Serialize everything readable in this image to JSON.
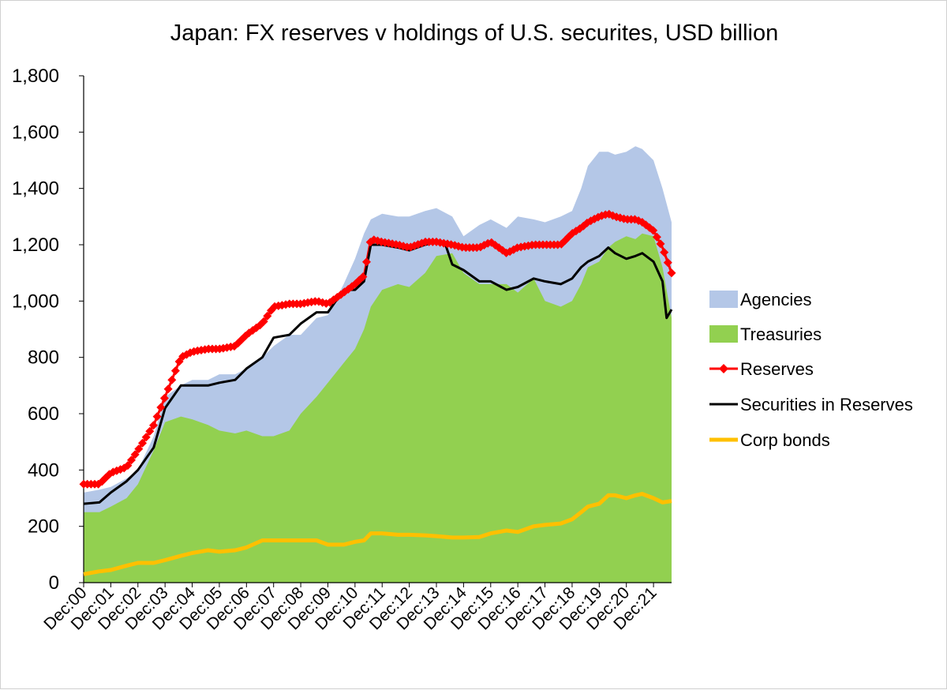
{
  "chart_data": {
    "type": "area",
    "title": "Japan: FX reserves v holdings of U.S. securites, USD billion",
    "xlabel": "",
    "ylabel": "",
    "ylim": [
      0,
      1800
    ],
    "yticks": [
      0,
      200,
      400,
      600,
      800,
      1000,
      1200,
      1400,
      1600,
      1800
    ],
    "ytick_labels": [
      "0",
      "200",
      "400",
      "600",
      "800",
      "1,000",
      "1,200",
      "1,400",
      "1,600",
      "1,800"
    ],
    "xtick_labels": [
      "Dec:00",
      "Dec:01",
      "Dec:02",
      "Dec:03",
      "Dec:04",
      "Dec:05",
      "Dec:06",
      "Dec:07",
      "Dec:08",
      "Dec:09",
      "Dec:10",
      "Dec:11",
      "Dec:12",
      "Dec:13",
      "Dec:14",
      "Dec:15",
      "Dec:16",
      "Dec:17",
      "Dec:18",
      "Dec:19",
      "Dec:20",
      "Dec:21"
    ],
    "x_range": [
      2000.917,
      2022.583
    ],
    "grid": false,
    "legend_position": "right",
    "colors": {
      "agencies": "#b4c7e7",
      "treasuries": "#92d050",
      "reserves": "#ff0000",
      "securities": "#000000",
      "corp_bonds": "#ffc000"
    },
    "series": [
      {
        "name": "Agencies",
        "kind": "stacked-area-top",
        "x": [
          2000.917,
          2001.5,
          2001.917,
          2002.5,
          2002.917,
          2003.5,
          2003.917,
          2004.5,
          2004.917,
          2005.5,
          2005.917,
          2006.5,
          2006.917,
          2007.5,
          2007.917,
          2008.5,
          2008.917,
          2009.5,
          2009.917,
          2010.5,
          2010.917,
          2011.25,
          2011.5,
          2011.917,
          2012.5,
          2012.917,
          2013.5,
          2013.917,
          2014.5,
          2014.917,
          2015.5,
          2015.917,
          2016.5,
          2016.917,
          2017.5,
          2017.917,
          2018.5,
          2018.917,
          2019.25,
          2019.5,
          2019.917,
          2020.25,
          2020.5,
          2020.917,
          2021.25,
          2021.5,
          2021.917,
          2022.25,
          2022.583
        ],
        "y": [
          320,
          330,
          340,
          370,
          400,
          520,
          660,
          700,
          720,
          720,
          740,
          740,
          760,
          800,
          840,
          880,
          880,
          940,
          950,
          1060,
          1150,
          1240,
          1290,
          1310,
          1300,
          1300,
          1320,
          1330,
          1300,
          1230,
          1270,
          1290,
          1260,
          1300,
          1290,
          1280,
          1300,
          1320,
          1400,
          1480,
          1530,
          1530,
          1520,
          1530,
          1550,
          1540,
          1500,
          1400,
          1280
        ]
      },
      {
        "name": "Treasuries",
        "kind": "area",
        "x": [
          2000.917,
          2001.5,
          2001.917,
          2002.5,
          2002.917,
          2003.5,
          2003.917,
          2004.5,
          2004.917,
          2005.5,
          2005.917,
          2006.5,
          2006.917,
          2007.5,
          2007.917,
          2008.5,
          2008.917,
          2009.5,
          2009.917,
          2010.5,
          2010.917,
          2011.25,
          2011.5,
          2011.917,
          2012.5,
          2012.917,
          2013.5,
          2013.917,
          2014.5,
          2014.917,
          2015.5,
          2015.917,
          2016.5,
          2016.917,
          2017.5,
          2017.917,
          2018.5,
          2018.917,
          2019.25,
          2019.5,
          2019.917,
          2020.25,
          2020.5,
          2020.917,
          2021.25,
          2021.5,
          2021.917,
          2022.25,
          2022.583
        ],
        "y": [
          250,
          250,
          270,
          300,
          350,
          470,
          570,
          590,
          580,
          560,
          540,
          530,
          540,
          520,
          520,
          540,
          600,
          660,
          710,
          780,
          830,
          900,
          980,
          1040,
          1060,
          1050,
          1100,
          1160,
          1170,
          1100,
          1060,
          1060,
          1060,
          1030,
          1080,
          1000,
          980,
          1000,
          1060,
          1120,
          1140,
          1190,
          1210,
          1230,
          1220,
          1240,
          1230,
          1120,
          940
        ]
      },
      {
        "name": "Reserves",
        "kind": "line-markers",
        "x": [
          2000.917,
          2001.5,
          2001.917,
          2002.5,
          2002.917,
          2003.5,
          2003.917,
          2004.5,
          2004.917,
          2005.5,
          2005.917,
          2006.5,
          2006.917,
          2007.5,
          2007.917,
          2008.5,
          2008.917,
          2009.5,
          2009.917,
          2010.5,
          2010.917,
          2011.25,
          2011.5,
          2011.917,
          2012.5,
          2012.917,
          2013.5,
          2013.917,
          2014.5,
          2014.917,
          2015.5,
          2015.917,
          2016.5,
          2016.917,
          2017.5,
          2017.917,
          2018.5,
          2018.917,
          2019.25,
          2019.5,
          2019.917,
          2020.25,
          2020.5,
          2020.917,
          2021.25,
          2021.5,
          2021.917,
          2022.25,
          2022.583
        ],
        "y": [
          350,
          350,
          390,
          410,
          470,
          560,
          660,
          800,
          820,
          830,
          830,
          840,
          880,
          920,
          980,
          990,
          990,
          1000,
          990,
          1030,
          1060,
          1090,
          1220,
          1210,
          1200,
          1190,
          1210,
          1210,
          1200,
          1190,
          1190,
          1210,
          1170,
          1190,
          1200,
          1200,
          1200,
          1240,
          1260,
          1280,
          1300,
          1310,
          1300,
          1290,
          1290,
          1280,
          1250,
          1190,
          1100
        ]
      },
      {
        "name": "Securities in Reserves",
        "kind": "line",
        "x": [
          2000.917,
          2001.5,
          2001.917,
          2002.5,
          2002.917,
          2003.5,
          2003.917,
          2004.5,
          2004.917,
          2005.5,
          2005.917,
          2006.5,
          2006.917,
          2007.5,
          2007.917,
          2008.5,
          2008.917,
          2009.5,
          2009.917,
          2010.5,
          2010.917,
          2011.25,
          2011.5,
          2011.917,
          2012.5,
          2012.917,
          2013.5,
          2013.917,
          2014.25,
          2014.5,
          2014.917,
          2015.5,
          2015.917,
          2016.5,
          2016.917,
          2017.5,
          2017.917,
          2018.5,
          2018.917,
          2019.25,
          2019.5,
          2019.917,
          2020.25,
          2020.5,
          2020.917,
          2021.25,
          2021.5,
          2021.917,
          2022.25,
          2022.4,
          2022.583
        ],
        "y": [
          280,
          285,
          320,
          360,
          400,
          480,
          620,
          700,
          700,
          700,
          710,
          720,
          760,
          800,
          870,
          880,
          920,
          960,
          960,
          1040,
          1040,
          1070,
          1200,
          1200,
          1190,
          1180,
          1200,
          1210,
          1200,
          1130,
          1110,
          1070,
          1070,
          1040,
          1050,
          1080,
          1070,
          1060,
          1080,
          1120,
          1140,
          1160,
          1190,
          1170,
          1150,
          1160,
          1170,
          1140,
          1070,
          940,
          970
        ]
      },
      {
        "name": "Corp bonds",
        "kind": "line",
        "x": [
          2000.917,
          2001.5,
          2001.917,
          2002.5,
          2002.917,
          2003.5,
          2003.917,
          2004.5,
          2004.917,
          2005.5,
          2005.917,
          2006.5,
          2006.917,
          2007.5,
          2007.917,
          2008.5,
          2008.917,
          2009.5,
          2009.917,
          2010.5,
          2010.917,
          2011.25,
          2011.5,
          2011.917,
          2012.5,
          2012.917,
          2013.5,
          2013.917,
          2014.5,
          2014.917,
          2015.5,
          2015.917,
          2016.5,
          2016.917,
          2017.5,
          2017.917,
          2018.5,
          2018.917,
          2019.25,
          2019.5,
          2019.917,
          2020.25,
          2020.5,
          2020.917,
          2021.25,
          2021.5,
          2021.917,
          2022.25,
          2022.583
        ],
        "y": [
          30,
          40,
          45,
          60,
          70,
          70,
          80,
          95,
          105,
          115,
          110,
          115,
          125,
          150,
          150,
          150,
          150,
          150,
          135,
          135,
          145,
          150,
          175,
          175,
          170,
          170,
          168,
          165,
          160,
          160,
          162,
          175,
          185,
          180,
          200,
          205,
          210,
          225,
          250,
          270,
          280,
          310,
          310,
          300,
          310,
          315,
          300,
          285,
          290
        ]
      }
    ]
  }
}
